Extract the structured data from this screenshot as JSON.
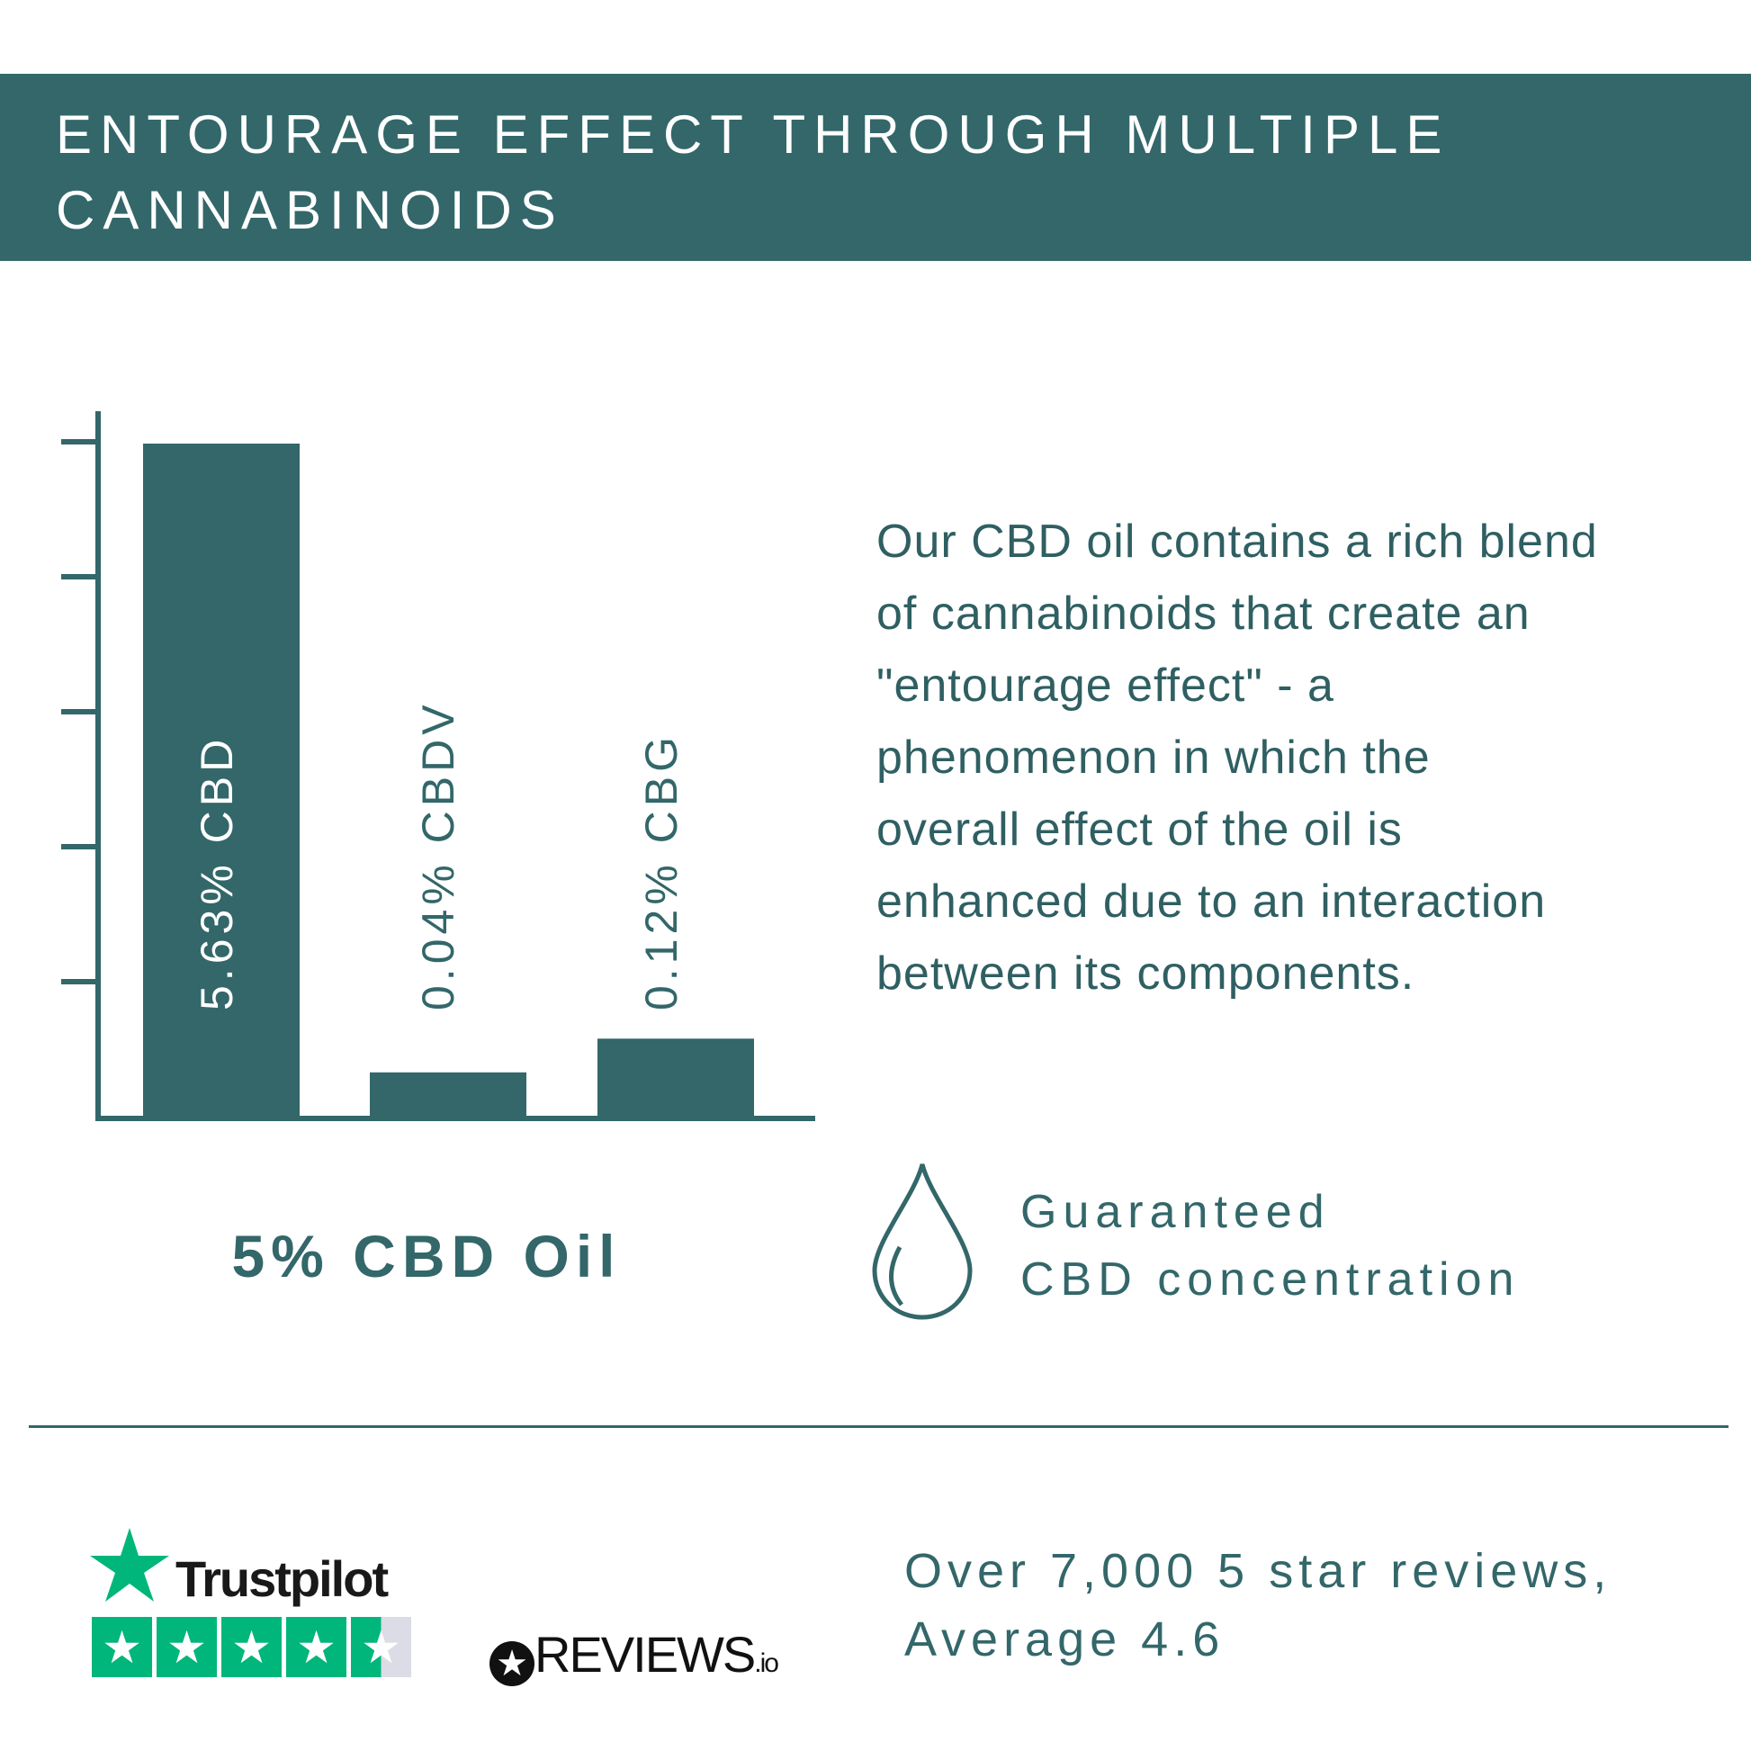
{
  "header": {
    "title_line1": "ENTOURAGE EFFECT THROUGH MULTIPLE",
    "title_line2": "CANNABINOIDS"
  },
  "chart_data": {
    "type": "bar",
    "categories": [
      "CBD",
      "CBDV",
      "CBG"
    ],
    "values": [
      5.63,
      0.04,
      0.12
    ],
    "data_labels": [
      "5.63% CBD",
      "0.04% CBDV",
      "0.12% CBG"
    ],
    "title": "",
    "xlabel": "5% CBD Oil",
    "ylabel": "",
    "grid": false,
    "y_tick_count": 5,
    "color": "#33676a"
  },
  "paragraph": [
    "Our CBD oil contains a rich blend",
    "of cannabinoids that create an",
    "\"entourage effect\" - a",
    "phenomenon in which the",
    "overall effect of the oil is",
    "enhanced due to an interaction",
    "between its components."
  ],
  "guarantee": {
    "icon": "drop-icon",
    "line1": "Guaranteed",
    "line2": "CBD concentration"
  },
  "reviews": {
    "trustpilot_name": "Trustpilot",
    "trustpilot_stars": 4.5,
    "trustpilot_color": "#00b67a",
    "reviewsio_name": "REVIEWS",
    "reviewsio_suffix": ".io",
    "line1": "Over 7,000 5 star reviews,",
    "line2": "Average 4.6"
  }
}
